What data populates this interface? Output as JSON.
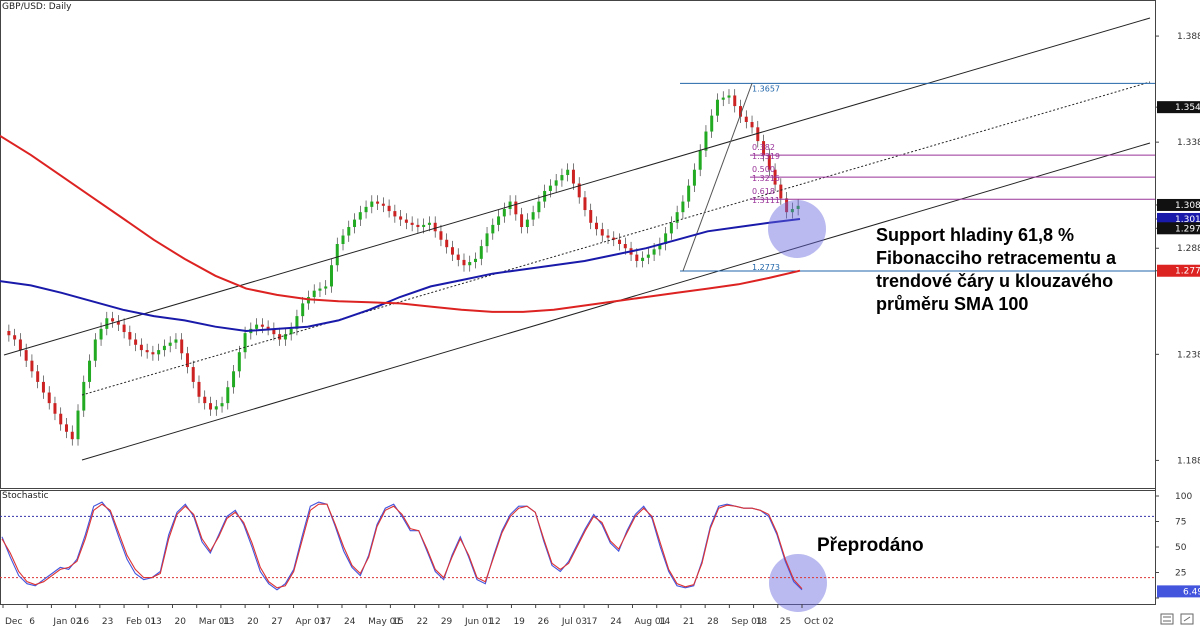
{
  "symbol_label": "GBP/USD: Daily",
  "indicator_label": "Stochastic",
  "annotations": {
    "support_lines": [
      "Support hladiny 61,8 %",
      "Fibonacciho retracementu a",
      "trendové čáry u klouzavého",
      "průměru SMA 100"
    ],
    "oversold": "Přeprodáno"
  },
  "colors": {
    "up_candle": "#22aa22",
    "down_candle": "#cc2222",
    "sma100": "#1a1aaa",
    "sma200": "#dd2222",
    "fib_base": "#2266aa",
    "fib_mid": "#993399",
    "channel": "#222222",
    "highlight": "#6666dd",
    "stoch_k": "#4455dd",
    "stoch_d": "#dd3333"
  },
  "icons": [
    "settings-icon",
    "expand-icon"
  ],
  "chart_data": [
    {
      "type": "candlestick",
      "title": "GBP/USD: Daily",
      "ylim": [
        1.175,
        1.405
      ],
      "y_ticks": [
        "1.3880",
        "1.3545",
        "1.3380",
        "1.3084",
        "1.3018",
        "1.2974",
        "1.2880",
        "1.2774",
        "1.2380",
        "1.1880"
      ],
      "y_tick_values": [
        1.388,
        1.3545,
        1.338,
        1.3084,
        1.3018,
        1.2974,
        1.288,
        1.2774,
        1.238,
        1.188
      ],
      "price_tags": [
        {
          "value": "1.3545",
          "price": 1.3545,
          "style": "dark"
        },
        {
          "value": "1.3084",
          "price": 1.3084,
          "style": "dark"
        },
        {
          "value": "1.3018",
          "price": 1.3018,
          "style": "blue"
        },
        {
          "value": "1.2974",
          "price": 1.2974,
          "style": "dark"
        },
        {
          "value": "1.2774",
          "price": 1.2774,
          "style": "red"
        }
      ],
      "x_labels": [
        "Dec",
        "6",
        "Jan 02",
        "16",
        "23",
        "Feb 01",
        "13",
        "20",
        "Mar 01",
        "13",
        "20",
        "27",
        "Apr 03",
        "17",
        "24",
        "May 01",
        "15",
        "22",
        "29",
        "Jun 01",
        "12",
        "19",
        "26",
        "Jul 03",
        "17",
        "24",
        "Aug 01",
        "14",
        "21",
        "28",
        "Sep 01",
        "18",
        "25",
        "Oct 02"
      ],
      "fibonacci": {
        "high": "1.3657",
        "high_price": 1.3657,
        "low": "1.2773",
        "low_price": 1.2773,
        "levels": [
          {
            "ratio": "0.382",
            "price_label": "1.3319",
            "price": 1.3319
          },
          {
            "ratio": "0.500",
            "price_label": "1.3215",
            "price": 1.3215
          },
          {
            "ratio": "0.618",
            "price_label": "1.3111",
            "price": 1.3111
          }
        ]
      },
      "series": [
        {
          "name": "SMA 100",
          "values": [
            1.2725,
            1.2705,
            1.267,
            1.263,
            1.259,
            1.256,
            1.254,
            1.251,
            1.249,
            1.25,
            1.251,
            1.254,
            1.259,
            1.265,
            1.27,
            1.273,
            1.276,
            1.278,
            1.28,
            1.282,
            1.285,
            1.288,
            1.292,
            1.296,
            1.298,
            1.3,
            1.3018
          ]
        },
        {
          "name": "SMA 200",
          "values": [
            1.341,
            1.332,
            1.322,
            1.312,
            1.302,
            1.292,
            1.283,
            1.275,
            1.269,
            1.266,
            1.264,
            1.263,
            1.2625,
            1.262,
            1.2605,
            1.259,
            1.258,
            1.258,
            1.259,
            1.261,
            1.263,
            1.265,
            1.267,
            1.269,
            1.271,
            1.274,
            1.2774
          ]
        }
      ]
    },
    {
      "type": "line",
      "title": "Stochastic",
      "ylim": [
        0,
        100
      ],
      "y_ticks": [
        "100",
        "75",
        "50",
        "25",
        "0"
      ],
      "y_tick_values": [
        100,
        75,
        50,
        25,
        0
      ],
      "levels": [
        80,
        20
      ],
      "last_value": "6.49",
      "last_value_num": 6.49,
      "series": [
        {
          "name": "%K",
          "values": [
            60,
            40,
            22,
            14,
            12,
            18,
            24,
            30,
            28,
            38,
            62,
            90,
            94,
            84,
            60,
            38,
            24,
            18,
            20,
            26,
            62,
            84,
            92,
            80,
            55,
            44,
            62,
            80,
            86,
            72,
            50,
            26,
            14,
            8,
            14,
            28,
            60,
            90,
            94,
            92,
            70,
            46,
            30,
            22,
            42,
            72,
            88,
            92,
            80,
            66,
            66,
            46,
            26,
            18,
            42,
            60,
            40,
            18,
            14,
            42,
            66,
            82,
            90,
            90,
            84,
            56,
            32,
            26,
            36,
            52,
            68,
            82,
            72,
            54,
            46,
            66,
            82,
            90,
            78,
            50,
            26,
            12,
            10,
            12,
            36,
            70,
            90,
            92,
            90,
            88,
            88,
            86,
            80,
            62,
            36,
            16,
            8
          ]
        },
        {
          "name": "%D",
          "values": [
            58,
            44,
            26,
            16,
            13,
            16,
            22,
            28,
            30,
            36,
            58,
            86,
            92,
            86,
            64,
            42,
            28,
            20,
            20,
            24,
            58,
            82,
            90,
            82,
            58,
            46,
            60,
            78,
            84,
            74,
            54,
            30,
            16,
            10,
            12,
            26,
            56,
            86,
            92,
            92,
            72,
            50,
            32,
            24,
            40,
            70,
            86,
            90,
            82,
            68,
            66,
            48,
            28,
            20,
            40,
            58,
            42,
            20,
            16,
            40,
            64,
            80,
            88,
            90,
            84,
            58,
            34,
            28,
            34,
            50,
            66,
            80,
            74,
            56,
            48,
            64,
            80,
            88,
            80,
            54,
            28,
            14,
            11,
            13,
            34,
            68,
            88,
            91,
            90,
            88,
            88,
            86,
            82,
            64,
            38,
            18,
            9
          ]
        }
      ]
    }
  ]
}
